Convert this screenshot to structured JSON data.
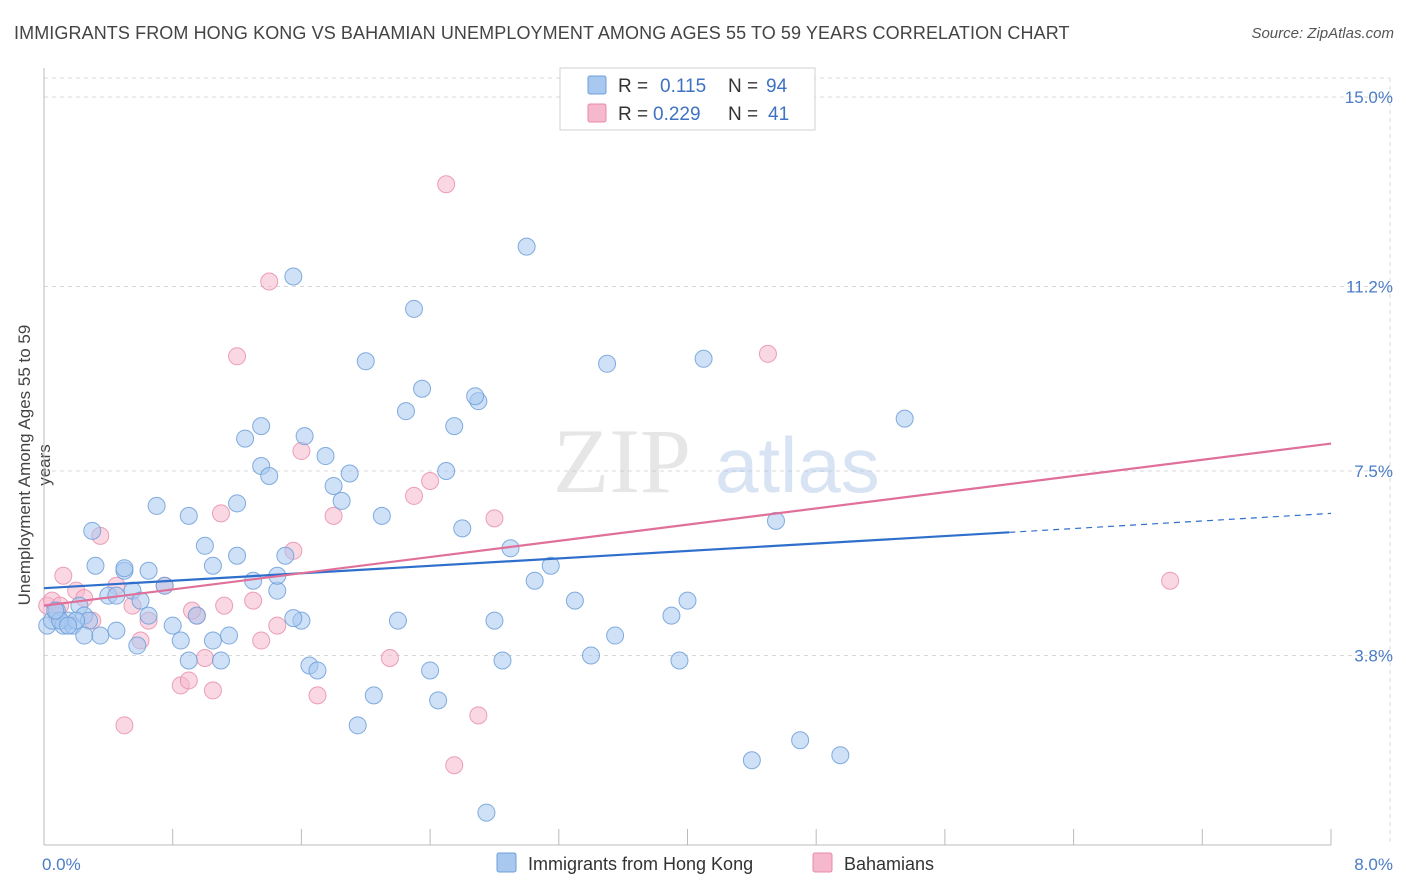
{
  "header": {
    "title": "IMMIGRANTS FROM HONG KONG VS BAHAMIAN UNEMPLOYMENT AMONG AGES 55 TO 59 YEARS CORRELATION CHART",
    "source": "Source: ZipAtlas.com"
  },
  "watermark": {
    "zip": "ZIP",
    "atlas": "atlas"
  },
  "legend_top": {
    "rows": [
      {
        "r_label": "R =",
        "r_value": "0.115",
        "n_label": "N =",
        "n_value": "94",
        "color": "#a8c8f0"
      },
      {
        "r_label": "R =",
        "r_value": "0.229",
        "n_label": "N =",
        "n_value": "41",
        "color": "#f6b8cc"
      }
    ]
  },
  "legend_bottom": [
    {
      "label": "Immigrants from Hong Kong",
      "color": "#a8c8f0"
    },
    {
      "label": "Bahamians",
      "color": "#f6b8cc"
    }
  ],
  "colors": {
    "blue_fill": "#a8c8f0",
    "blue_stroke": "#6d9fd8",
    "blue_line": "#2f6fcc",
    "pink_fill": "#f6b8cc",
    "pink_stroke": "#e88aa8",
    "pink_line": "#e0709a",
    "grid": "#d8d8d8",
    "axis_text": "#4a7cc7"
  },
  "chart_data": {
    "type": "scatter",
    "title": "IMMIGRANTS FROM HONG KONG VS BAHAMIAN UNEMPLOYMENT AMONG AGES 55 TO 59 YEARS CORRELATION CHART",
    "xlabel": "",
    "ylabel": "Unemployment Among Ages 55 to 59 years",
    "xlim": [
      0,
      8.0
    ],
    "ylim": [
      0,
      15.0
    ],
    "x_tick_labels": [
      "0.0%",
      "8.0%"
    ],
    "y_ticks": [
      3.8,
      7.5,
      11.2,
      15.0
    ],
    "y_tick_labels": [
      "3.8%",
      "7.5%",
      "11.2%",
      "15.0%"
    ],
    "grid": true,
    "legend_position": "top-center",
    "series": [
      {
        "name": "Immigrants from Hong Kong",
        "color": "#a8c8f0",
        "trend": {
          "x": [
            0.0,
            6.0
          ],
          "y": [
            5.15,
            6.27
          ],
          "dashed_extension_x": [
            6.0,
            8.0
          ],
          "dashed_extension_y": [
            6.27,
            6.65
          ]
        },
        "points": [
          [
            0.02,
            4.4
          ],
          [
            0.05,
            4.5
          ],
          [
            0.08,
            4.7
          ],
          [
            0.12,
            4.4
          ],
          [
            0.15,
            4.5
          ],
          [
            0.18,
            4.4
          ],
          [
            0.22,
            4.8
          ],
          [
            0.25,
            4.6
          ],
          [
            0.28,
            4.5
          ],
          [
            0.32,
            5.6
          ],
          [
            0.35,
            4.2
          ],
          [
            0.4,
            5.0
          ],
          [
            0.45,
            4.3
          ],
          [
            0.5,
            5.5
          ],
          [
            0.55,
            5.1
          ],
          [
            0.58,
            4.0
          ],
          [
            0.6,
            4.9
          ],
          [
            0.65,
            4.6
          ],
          [
            0.7,
            6.8
          ],
          [
            0.75,
            5.2
          ],
          [
            0.8,
            4.4
          ],
          [
            0.85,
            4.1
          ],
          [
            0.9,
            3.7
          ],
          [
            0.95,
            4.6
          ],
          [
            1.0,
            6.0
          ],
          [
            1.05,
            5.6
          ],
          [
            1.1,
            3.7
          ],
          [
            1.15,
            4.2
          ],
          [
            1.2,
            6.85
          ],
          [
            1.25,
            8.15
          ],
          [
            1.3,
            5.3
          ],
          [
            1.35,
            7.6
          ],
          [
            1.4,
            7.4
          ],
          [
            1.45,
            5.1
          ],
          [
            1.5,
            5.8
          ],
          [
            1.55,
            11.4
          ],
          [
            1.6,
            4.5
          ],
          [
            1.65,
            3.6
          ],
          [
            1.7,
            3.5
          ],
          [
            1.75,
            7.8
          ],
          [
            1.8,
            7.2
          ],
          [
            1.85,
            6.9
          ],
          [
            1.9,
            7.45
          ],
          [
            1.95,
            2.4
          ],
          [
            2.0,
            9.7
          ],
          [
            2.05,
            3.0
          ],
          [
            2.1,
            6.6
          ],
          [
            2.2,
            4.5
          ],
          [
            2.25,
            8.7
          ],
          [
            2.3,
            10.75
          ],
          [
            2.35,
            9.15
          ],
          [
            2.4,
            3.5
          ],
          [
            2.45,
            2.9
          ],
          [
            2.5,
            7.5
          ],
          [
            2.6,
            6.35
          ],
          [
            2.7,
            8.9
          ],
          [
            2.8,
            4.5
          ],
          [
            2.85,
            3.7
          ],
          [
            2.9,
            5.95
          ],
          [
            3.0,
            12.0
          ],
          [
            3.05,
            5.3
          ],
          [
            3.15,
            5.6
          ],
          [
            3.3,
            4.9
          ],
          [
            3.4,
            3.8
          ],
          [
            3.5,
            9.65
          ],
          [
            3.55,
            4.2
          ],
          [
            3.9,
            4.6
          ],
          [
            3.95,
            3.7
          ],
          [
            4.0,
            4.9
          ],
          [
            4.1,
            9.75
          ],
          [
            4.4,
            1.7
          ],
          [
            4.55,
            6.5
          ],
          [
            4.7,
            2.1
          ],
          [
            4.95,
            1.8
          ],
          [
            5.35,
            8.55
          ],
          [
            0.1,
            4.5
          ],
          [
            0.3,
            6.3
          ],
          [
            0.2,
            4.5
          ],
          [
            0.9,
            6.6
          ],
          [
            1.05,
            4.1
          ],
          [
            1.35,
            8.4
          ],
          [
            2.68,
            9.0
          ],
          [
            2.75,
            0.65
          ],
          [
            0.15,
            4.4
          ],
          [
            0.25,
            4.2
          ],
          [
            0.45,
            5.0
          ],
          [
            0.65,
            5.5
          ],
          [
            1.2,
            5.8
          ],
          [
            1.62,
            8.2
          ],
          [
            2.55,
            8.4
          ],
          [
            0.07,
            4.7
          ],
          [
            0.5,
            5.55
          ],
          [
            1.45,
            5.4
          ],
          [
            1.55,
            4.55
          ]
        ]
      },
      {
        "name": "Bahamians",
        "color": "#f6b8cc",
        "trend": {
          "x": [
            0.0,
            8.0
          ],
          "y": [
            4.8,
            8.05
          ]
        },
        "points": [
          [
            0.02,
            4.8
          ],
          [
            0.05,
            4.9
          ],
          [
            0.08,
            4.6
          ],
          [
            0.1,
            4.8
          ],
          [
            0.12,
            5.4
          ],
          [
            0.2,
            5.1
          ],
          [
            0.25,
            4.95
          ],
          [
            0.3,
            4.5
          ],
          [
            0.35,
            6.2
          ],
          [
            0.45,
            5.2
          ],
          [
            0.5,
            2.4
          ],
          [
            0.55,
            4.8
          ],
          [
            0.6,
            4.1
          ],
          [
            0.65,
            4.5
          ],
          [
            0.75,
            5.2
          ],
          [
            0.85,
            3.2
          ],
          [
            0.9,
            3.3
          ],
          [
            0.95,
            4.6
          ],
          [
            1.0,
            3.75
          ],
          [
            1.05,
            3.1
          ],
          [
            1.1,
            6.65
          ],
          [
            1.2,
            9.8
          ],
          [
            1.3,
            4.9
          ],
          [
            1.35,
            4.1
          ],
          [
            1.4,
            11.3
          ],
          [
            1.45,
            4.4
          ],
          [
            1.55,
            5.9
          ],
          [
            1.6,
            7.9
          ],
          [
            1.7,
            3.0
          ],
          [
            1.8,
            6.6
          ],
          [
            2.15,
            3.75
          ],
          [
            2.3,
            7.0
          ],
          [
            2.4,
            7.3
          ],
          [
            2.5,
            13.25
          ],
          [
            2.55,
            1.6
          ],
          [
            2.7,
            2.6
          ],
          [
            2.8,
            6.55
          ],
          [
            4.5,
            9.85
          ],
          [
            7.0,
            5.3
          ],
          [
            1.12,
            4.8
          ],
          [
            0.92,
            4.7
          ]
        ]
      }
    ]
  }
}
